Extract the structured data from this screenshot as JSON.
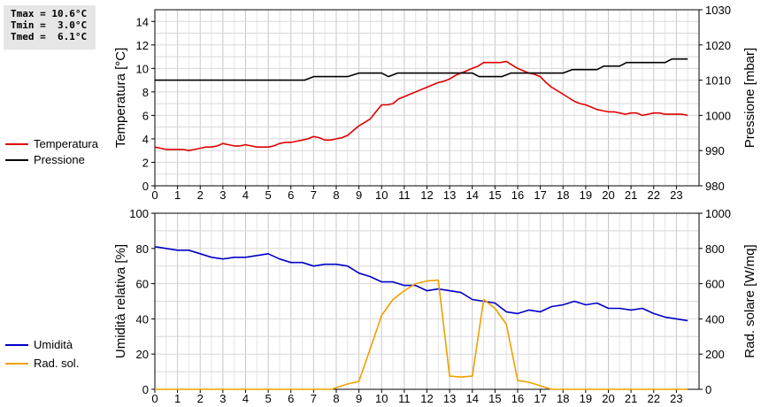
{
  "stats": {
    "tmax": "Tmax = 10.6°C",
    "tmin": "Tmin =  3.0°C",
    "tmed": "Tmed =  6.1°C"
  },
  "chart_data": [
    {
      "type": "line",
      "x_ticks": [
        "0",
        "1",
        "2",
        "3",
        "4",
        "5",
        "6",
        "7",
        "8",
        "9",
        "10",
        "11",
        "12",
        "13",
        "14",
        "15",
        "16",
        "17",
        "18",
        "19",
        "20",
        "21",
        "22",
        "23"
      ],
      "xlim": [
        0,
        24
      ],
      "left_axis": {
        "label": "Temperatura [°C]",
        "ylim": [
          0,
          15
        ],
        "ticks": [
          "0",
          "2",
          "4",
          "6",
          "8",
          "10",
          "12",
          "14"
        ]
      },
      "right_axis": {
        "label": "Pressione [mbar]",
        "ylim": [
          980,
          1030
        ],
        "ticks": [
          "980",
          "990",
          "1000",
          "1010",
          "1020",
          "1030"
        ]
      },
      "grid": true,
      "legend_placement": "left-outside",
      "series": [
        {
          "name": "Temperatura",
          "color": "#e00000",
          "axis": "left",
          "x": [
            0,
            0.25,
            0.5,
            0.75,
            1,
            1.25,
            1.5,
            1.75,
            2,
            2.25,
            2.5,
            2.75,
            3,
            3.25,
            3.5,
            3.75,
            4,
            4.25,
            4.5,
            4.75,
            5,
            5.25,
            5.5,
            5.75,
            6,
            6.25,
            6.5,
            6.75,
            7,
            7.25,
            7.5,
            7.75,
            8,
            8.25,
            8.5,
            8.75,
            9,
            9.25,
            9.5,
            9.75,
            10,
            10.25,
            10.5,
            10.75,
            11,
            11.25,
            11.5,
            11.75,
            12,
            12.25,
            12.5,
            12.75,
            13,
            13.25,
            13.5,
            13.75,
            14,
            14.25,
            14.5,
            14.75,
            15,
            15.25,
            15.5,
            15.75,
            16,
            16.25,
            16.5,
            16.75,
            17,
            17.25,
            17.5,
            17.75,
            18,
            18.25,
            18.5,
            18.75,
            19,
            19.25,
            19.5,
            19.75,
            20,
            20.25,
            20.5,
            20.75,
            21,
            21.25,
            21.5,
            21.75,
            22,
            22.25,
            22.5,
            22.75,
            23,
            23.25,
            23.5
          ],
          "values": [
            3.3,
            3.2,
            3.1,
            3.1,
            3.1,
            3.1,
            3.0,
            3.1,
            3.2,
            3.3,
            3.3,
            3.4,
            3.6,
            3.5,
            3.4,
            3.4,
            3.5,
            3.4,
            3.3,
            3.3,
            3.3,
            3.4,
            3.6,
            3.7,
            3.7,
            3.8,
            3.9,
            4.0,
            4.2,
            4.1,
            3.9,
            3.9,
            4.0,
            4.1,
            4.3,
            4.7,
            5.1,
            5.4,
            5.7,
            6.3,
            6.9,
            6.9,
            7.0,
            7.4,
            7.6,
            7.8,
            8.0,
            8.2,
            8.4,
            8.6,
            8.8,
            8.9,
            9.1,
            9.4,
            9.6,
            9.8,
            10.0,
            10.2,
            10.5,
            10.5,
            10.5,
            10.5,
            10.6,
            10.3,
            10.0,
            9.8,
            9.6,
            9.5,
            9.3,
            8.8,
            8.4,
            8.1,
            7.8,
            7.5,
            7.2,
            7.0,
            6.9,
            6.7,
            6.5,
            6.4,
            6.3,
            6.3,
            6.2,
            6.1,
            6.2,
            6.2,
            6.0,
            6.1,
            6.2,
            6.2,
            6.1,
            6.1,
            6.1,
            6.1,
            6.0
          ]
        },
        {
          "name": "Pressione",
          "color": "#000000",
          "axis": "right",
          "x": [
            0,
            6.6,
            7,
            8.5,
            9,
            10,
            10.3,
            10.7,
            14,
            14.3,
            15,
            15.3,
            15.7,
            18,
            18.4,
            19.5,
            19.8,
            20.5,
            20.8,
            22.5,
            22.8,
            23.5
          ],
          "values": [
            1010,
            1010,
            1011,
            1011,
            1012,
            1012,
            1011,
            1012,
            1012,
            1011,
            1011,
            1011,
            1012,
            1012,
            1013,
            1013,
            1014,
            1014,
            1015,
            1015,
            1016,
            1016
          ]
        }
      ]
    },
    {
      "type": "line",
      "x_ticks": [
        "0",
        "1",
        "2",
        "3",
        "4",
        "5",
        "6",
        "7",
        "8",
        "9",
        "10",
        "11",
        "12",
        "13",
        "14",
        "15",
        "16",
        "17",
        "18",
        "19",
        "20",
        "21",
        "22",
        "23"
      ],
      "xlim": [
        0,
        24
      ],
      "left_axis": {
        "label": "Umidità relativa [%]",
        "ylim": [
          0,
          100
        ],
        "ticks": [
          "0",
          "20",
          "40",
          "60",
          "80",
          "100"
        ]
      },
      "right_axis": {
        "label": "Rad. solare [W/mq]",
        "ylim": [
          0,
          1000
        ],
        "ticks": [
          "0",
          "200",
          "400",
          "600",
          "800",
          "1000"
        ]
      },
      "grid": true,
      "legend_placement": "left-outside",
      "series": [
        {
          "name": "Umidità",
          "color": "#0000c8",
          "axis": "left",
          "x": [
            0,
            0.5,
            1,
            1.5,
            2,
            2.5,
            3,
            3.5,
            4,
            4.5,
            5,
            5.5,
            6,
            6.5,
            7,
            7.5,
            8,
            8.5,
            9,
            9.5,
            10,
            10.5,
            11,
            11.5,
            12,
            12.5,
            13,
            13.5,
            14,
            14.5,
            15,
            15.5,
            16,
            16.5,
            17,
            17.5,
            18,
            18.5,
            19,
            19.5,
            20,
            20.5,
            21,
            21.5,
            22,
            22.5,
            23,
            23.5
          ],
          "values": [
            81,
            80,
            79,
            79,
            77,
            75,
            74,
            75,
            75,
            76,
            77,
            74,
            72,
            72,
            70,
            71,
            71,
            70,
            66,
            64,
            61,
            61,
            59,
            59,
            56,
            57,
            56,
            55,
            51,
            50,
            49,
            44,
            43,
            45,
            44,
            47,
            48,
            50,
            48,
            49,
            46,
            46,
            45,
            46,
            43,
            41,
            40,
            39
          ]
        },
        {
          "name": "Rad. sol.",
          "color": "#f0a000",
          "axis": "right",
          "x": [
            0,
            7.5,
            7.8,
            8,
            8.5,
            9,
            9.5,
            10,
            10.5,
            11,
            11.5,
            12,
            12.5,
            13,
            13.5,
            14,
            14.5,
            15,
            15.5,
            16,
            16.5,
            17,
            17.5,
            18,
            23.5
          ],
          "values": [
            0,
            0,
            0,
            10,
            30,
            45,
            230,
            420,
            510,
            560,
            600,
            615,
            620,
            75,
            70,
            75,
            510,
            460,
            370,
            50,
            40,
            20,
            0,
            0,
            0
          ]
        }
      ]
    }
  ]
}
